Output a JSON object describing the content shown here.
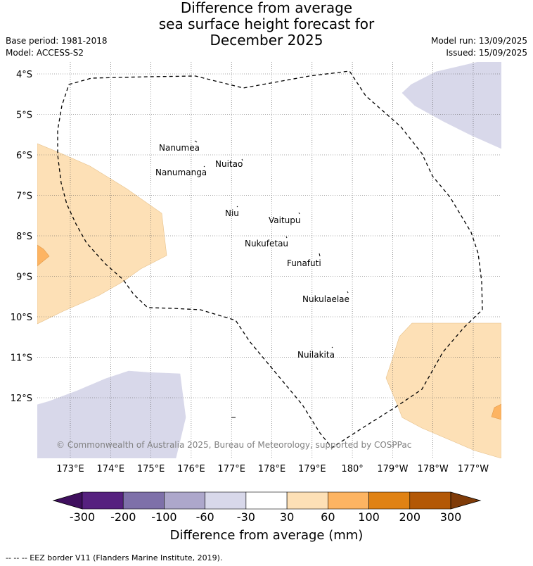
{
  "header": {
    "title_lines": [
      "Difference from average",
      "sea surface height forecast for",
      "December 2025"
    ],
    "base_period": "Base period: 1981-2018",
    "model": "Model: ACCESS-S2",
    "model_run": "Model run: 13/09/2025",
    "issued": "Issued: 15/09/2025"
  },
  "map": {
    "lat_labels": [
      "4°S",
      "5°S",
      "6°S",
      "7°S",
      "8°S",
      "9°S",
      "10°S",
      "11°S",
      "12°S"
    ],
    "lon_labels": [
      "173°E",
      "174°E",
      "175°E",
      "176°E",
      "177°E",
      "178°E",
      "179°E",
      "180°",
      "179°W",
      "178°W",
      "177°W"
    ],
    "islands": [
      "Nanumea",
      "Nuitao",
      "Nanumanga",
      "Niu",
      "Vaitupu",
      "Nukufetau",
      "Funafuti",
      "Nukulaelae",
      "Nuilakita"
    ],
    "copyright": "© Commonwealth of Australia 2025, Bureau of Meteorology, supported by COSPPac",
    "colors": {
      "anomaly_30_60": "#fde0b6",
      "anomaly_60_100": "#fdb462",
      "anomaly_neg60_neg30": "#d8d8ea",
      "eez_border": "#000000"
    }
  },
  "colorbar": {
    "ticks": [
      "-300",
      "-200",
      "-100",
      "-60",
      "-30",
      "30",
      "60",
      "100",
      "200",
      "300"
    ],
    "colors": [
      "#3f0f5e",
      "#56217f",
      "#7e70a9",
      "#ada7cb",
      "#d8d8ea",
      "#ffffff",
      "#fde0b6",
      "#fdb462",
      "#e08214",
      "#b35806",
      "#7f3b08"
    ],
    "label": "Difference from average (mm)"
  },
  "footer": {
    "legend_text": "--  --  -- EEZ border V11 (Flanders Marine Institute, 2019)."
  }
}
